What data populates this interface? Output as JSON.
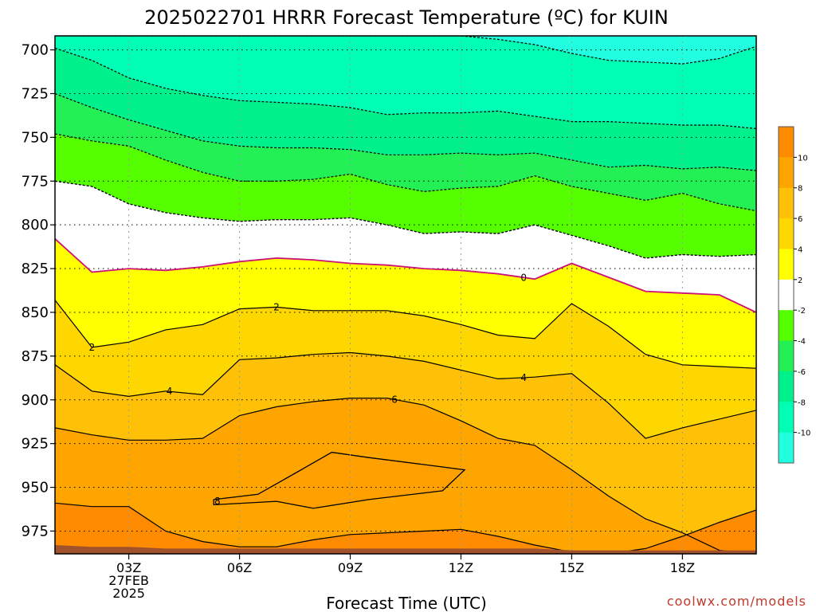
{
  "chart_data": {
    "type": "contour",
    "title": "2025022701 HRRR Forecast Temperature (ºC) for KUIN",
    "xlabel": "Forecast Time (UTC)",
    "credit": "coolwx.com/models",
    "x_hours": [
      0,
      1,
      2,
      3,
      4,
      5,
      6,
      7,
      8,
      9,
      10,
      11,
      12,
      13,
      14,
      15,
      16,
      17,
      18,
      19
    ],
    "x_ticks": [
      {
        "hour": 2,
        "lines": [
          "03Z",
          "27FEB",
          "2025"
        ]
      },
      {
        "hour": 5,
        "lines": [
          "06Z"
        ]
      },
      {
        "hour": 8,
        "lines": [
          "09Z"
        ]
      },
      {
        "hour": 11,
        "lines": [
          "12Z"
        ]
      },
      {
        "hour": 14,
        "lines": [
          "15Z"
        ]
      },
      {
        "hour": 17,
        "lines": [
          "18Z"
        ]
      }
    ],
    "y_ticks": [
      700,
      725,
      750,
      775,
      800,
      825,
      850,
      875,
      900,
      925,
      950,
      975
    ],
    "ylim": [
      692,
      988
    ],
    "grid": true,
    "colorbar": {
      "labels": [
        "10",
        "8",
        "6",
        "4",
        "2",
        "-2",
        "-4",
        "-6",
        "-8",
        "-10"
      ],
      "colors": [
        "#ff8c00",
        "#ffa500",
        "#ffc107",
        "#ffd700",
        "#ffff00",
        "#ffffff",
        "#55ff00",
        "#22f055",
        "#00f08c",
        "#00ffb4",
        "#22ffe0"
      ]
    },
    "isotherms": [
      {
        "value": -14,
        "label": "",
        "dashed": true,
        "color": "#000000",
        "p": [
          692,
          692,
          692,
          692,
          692,
          692,
          692,
          692,
          692,
          692,
          692,
          692,
          694,
          697,
          702,
          706,
          707,
          708,
          705,
          698
        ]
      },
      {
        "value": -12,
        "label": "",
        "dashed": true,
        "color": "#000000",
        "p": [
          699,
          706,
          716,
          722,
          726,
          729,
          730,
          731,
          733,
          737,
          736,
          736,
          735,
          738,
          741,
          741,
          742,
          743,
          743,
          745
        ]
      },
      {
        "value": -10,
        "label": "",
        "dashed": true,
        "color": "#000000",
        "p": [
          725,
          733,
          740,
          746,
          752,
          755,
          756,
          756,
          757,
          760,
          760,
          759,
          760,
          759,
          763,
          767,
          766,
          768,
          767,
          769
        ]
      },
      {
        "value": -8,
        "label": "",
        "dashed": true,
        "color": "#000000",
        "p": [
          748,
          752,
          755,
          763,
          770,
          775,
          775,
          774,
          771,
          777,
          781,
          779,
          778,
          772,
          778,
          782,
          786,
          782,
          788,
          792
        ]
      },
      {
        "value": -6,
        "label": "",
        "dashed": true,
        "color": "#000000",
        "p": [
          775,
          778,
          788,
          793,
          796,
          798,
          797,
          797,
          796,
          800,
          805,
          804,
          805,
          800,
          806,
          812,
          819,
          817,
          818,
          817
        ]
      },
      {
        "value": -4,
        "label": "",
        "dashed": true,
        "color": "#000000",
        "p": [
          775,
          778,
          788,
          793,
          796,
          798,
          797,
          797,
          796,
          800,
          805,
          804,
          805,
          800,
          806,
          812,
          819,
          817,
          818,
          817
        ]
      },
      {
        "value": 0,
        "label": "0",
        "dashed": false,
        "color": "#cc1177",
        "p": [
          808,
          827,
          825,
          826,
          824,
          821,
          819,
          820,
          822,
          823,
          825,
          826,
          828,
          831,
          822,
          830,
          838,
          839,
          840,
          850
        ]
      },
      {
        "value": 2,
        "label": "2",
        "dashed": false,
        "color": "#000000",
        "p": [
          843,
          870,
          867,
          860,
          857,
          848,
          847,
          849,
          849,
          849,
          852,
          857,
          863,
          865,
          845,
          858,
          874,
          880,
          881,
          882
        ]
      },
      {
        "value": 4,
        "label": "4",
        "dashed": false,
        "color": "#000000",
        "p": [
          880,
          895,
          898,
          895,
          897,
          877,
          876,
          874,
          873,
          875,
          878,
          883,
          888,
          887,
          885,
          902,
          922,
          916,
          911,
          906
        ]
      },
      {
        "value": 6,
        "label": "6",
        "dashed": false,
        "color": "#000000",
        "p": [
          916,
          920,
          923,
          923,
          922,
          909,
          904,
          901,
          899,
          899,
          903,
          912,
          922,
          926,
          940,
          955,
          968,
          976,
          986,
          988
        ]
      },
      {
        "value": 8,
        "label": "8",
        "dashed": false,
        "color": "#000000",
        "p": [
          959,
          961,
          961,
          975,
          981,
          984,
          984,
          980,
          977,
          976,
          975,
          974,
          978,
          983,
          987,
          988,
          985,
          978,
          970,
          963
        ]
      },
      {
        "value": 10,
        "label": "",
        "dashed": false,
        "color": "#000000",
        "p": [
          988,
          988,
          988,
          988,
          988,
          988,
          988,
          988,
          988,
          988,
          988,
          988,
          988,
          988,
          988,
          988,
          988,
          988,
          988,
          988
        ]
      }
    ],
    "warm_pocket": {
      "value": 8,
      "label": "8",
      "points": [
        [
          4.3,
          957
        ],
        [
          5.5,
          954
        ],
        [
          6.5,
          942
        ],
        [
          7.5,
          930
        ],
        [
          8.5,
          933
        ],
        [
          10,
          937
        ],
        [
          11.1,
          940
        ],
        [
          10.5,
          952
        ],
        [
          8.5,
          957
        ],
        [
          7,
          962
        ],
        [
          6,
          958
        ],
        [
          4.3,
          960
        ]
      ]
    },
    "ground": {
      "p": [
        983,
        984,
        984,
        985,
        985,
        985,
        985,
        985,
        985,
        985,
        985,
        985,
        985,
        985,
        986,
        986,
        986,
        986,
        986,
        986
      ],
      "color": "#a0522d"
    }
  }
}
